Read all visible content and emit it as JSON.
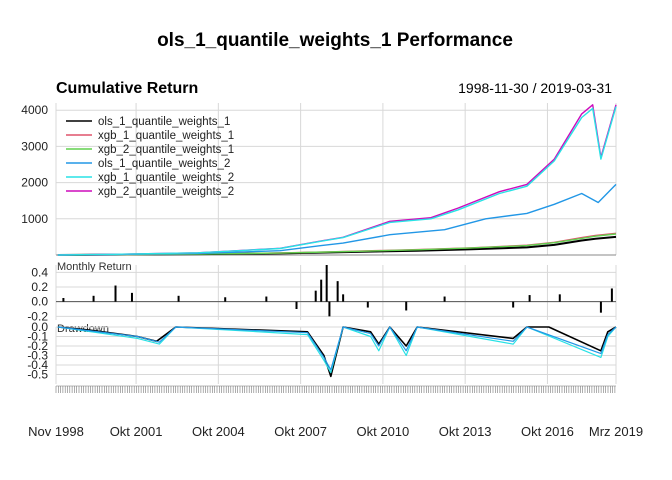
{
  "chart_data": {
    "type": "line",
    "title": "ols_1_quantile_weights_1 Performance",
    "panels": [
      {
        "name": "Cumulative Return",
        "date_range": "1998-11-30 / 2019-03-31",
        "ylim": [
          0,
          4200
        ],
        "yticks": [
          1000,
          2000,
          3000,
          4000
        ],
        "series": [
          {
            "name": "ols_1_quantile_weights_1",
            "color": "#000000",
            "x": [
              1998.9,
              2001,
              2004,
              2007,
              2008.7,
              2010,
              2012,
              2014,
              2016,
              2017,
              2018,
              2018.5,
              2019.25
            ],
            "values": [
              0,
              10,
              25,
              45,
              70,
              90,
              120,
              160,
              210,
              280,
              400,
              450,
              500
            ]
          },
          {
            "name": "xgb_1_quantile_weights_1",
            "color": "#DF536B",
            "x": [
              1998.9,
              2001,
              2004,
              2007,
              2008.7,
              2010,
              2012,
              2014,
              2016,
              2017,
              2018,
              2018.5,
              2019.25
            ],
            "values": [
              0,
              12,
              30,
              55,
              85,
              110,
              150,
              200,
              270,
              350,
              480,
              540,
              600
            ]
          },
          {
            "name": "xgb_2_quantile_weights_1",
            "color": "#61D04F",
            "x": [
              1998.9,
              2001,
              2004,
              2007,
              2008.7,
              2010,
              2012,
              2014,
              2016,
              2017,
              2018,
              2018.5,
              2019.25
            ],
            "values": [
              0,
              12,
              29,
              52,
              82,
              105,
              145,
              195,
              260,
              340,
              460,
              520,
              580
            ]
          },
          {
            "name": "ols_1_quantile_weights_2",
            "color": "#2297E6",
            "x": [
              1998.9,
              2001,
              2004,
              2007,
              2008.5,
              2009.3,
              2011,
              2013,
              2014.5,
              2016,
              2017,
              2018,
              2018.6,
              2019.25
            ],
            "values": [
              0,
              15,
              45,
              120,
              260,
              330,
              560,
              700,
              1000,
              1150,
              1400,
              1700,
              1450,
              1950
            ]
          },
          {
            "name": "xgb_1_quantile_weights_2",
            "color": "#28E2E5",
            "x": [
              1998.9,
              2001,
              2004,
              2007,
              2008.5,
              2009.3,
              2011,
              2012.5,
              2013.5,
              2015,
              2016,
              2017,
              2018,
              2018.4,
              2018.7,
              2019.25
            ],
            "values": [
              0,
              20,
              60,
              180,
              380,
              480,
              900,
              1000,
              1250,
              1700,
              1900,
              2600,
              3800,
              4050,
              2650,
              4100
            ]
          },
          {
            "name": "xgb_2_quantile_weights_2",
            "color": "#CD0BBC",
            "x": [
              1998.9,
              2001,
              2004,
              2007,
              2008.5,
              2009.3,
              2011,
              2012.5,
              2013.5,
              2015,
              2016,
              2017,
              2018,
              2018.4,
              2018.7,
              2019.25
            ],
            "values": [
              0,
              20,
              62,
              185,
              390,
              490,
              930,
              1030,
              1300,
              1750,
              1950,
              2650,
              3900,
              4150,
              2700,
              4150
            ]
          }
        ]
      },
      {
        "name": "Monthly Return",
        "ylim": [
          -0.25,
          0.5
        ],
        "yticks": [
          "0.4",
          "0.2",
          "0.0",
          "-0.2"
        ],
        "series": [
          {
            "name": "ols_1_quantile_weights_1",
            "type": "bar",
            "x": [
              1999.1,
              2000.2,
              2001.0,
              2001.6,
              2003.3,
              2005.0,
              2006.5,
              2007.6,
              2008.3,
              2008.5,
              2008.7,
              2008.8,
              2009.1,
              2009.3,
              2010.2,
              2011.6,
              2013.0,
              2015.5,
              2016.1,
              2017.2,
              2018.7,
              2019.1
            ],
            "values": [
              0.05,
              0.08,
              0.22,
              0.12,
              0.08,
              0.06,
              0.07,
              -0.1,
              0.15,
              0.3,
              0.5,
              -0.2,
              0.28,
              0.1,
              -0.08,
              -0.12,
              0.07,
              -0.08,
              0.09,
              0.1,
              -0.15,
              0.18
            ]
          }
        ]
      },
      {
        "name": "Drawdown",
        "ylim": [
          -0.6,
          0.0
        ],
        "yticks": [
          "0.0",
          "-0.1",
          "-0.2",
          "-0.3",
          "-0.4",
          "-0.5"
        ],
        "series": [
          {
            "name": "ols_1_quantile_weights_1",
            "color": "#000000",
            "x": [
              1998.9,
              2000.0,
              2001.8,
              2002.5,
              2003.2,
              2008.0,
              2008.6,
              2008.85,
              2009.3,
              2010.3,
              2010.6,
              2011.0,
              2011.6,
              2012.0,
              2015.5,
              2016.0,
              2016.8,
              2018.7,
              2018.95,
              2019.25
            ],
            "values": [
              0,
              -0.03,
              -0.1,
              -0.15,
              0,
              -0.05,
              -0.3,
              -0.52,
              0,
              -0.05,
              -0.18,
              0,
              -0.2,
              0,
              -0.12,
              0,
              0,
              -0.25,
              -0.05,
              0
            ]
          },
          {
            "name": "xgb_1_quantile_weights_2",
            "color": "#28E2E5",
            "x": [
              1998.9,
              2001.8,
              2002.6,
              2003.2,
              2008.0,
              2008.6,
              2008.85,
              2009.3,
              2010.3,
              2010.6,
              2011.0,
              2011.6,
              2012.0,
              2015.5,
              2016.0,
              2018.7,
              2018.95,
              2019.25
            ],
            "values": [
              0,
              -0.12,
              -0.18,
              0,
              -0.08,
              -0.35,
              -0.48,
              0,
              -0.1,
              -0.25,
              0,
              -0.3,
              0,
              -0.18,
              0,
              -0.32,
              -0.1,
              0
            ]
          },
          {
            "name": "ols_1_quantile_weights_2",
            "color": "#2297E6",
            "x": [
              1998.9,
              2001.8,
              2002.6,
              2003.2,
              2008.0,
              2008.6,
              2008.85,
              2009.3,
              2010.3,
              2010.6,
              2011.0,
              2011.6,
              2012.0,
              2015.5,
              2016.0,
              2018.7,
              2018.95,
              2019.25
            ],
            "values": [
              0,
              -0.1,
              -0.16,
              0,
              -0.06,
              -0.32,
              -0.45,
              0,
              -0.07,
              -0.2,
              0,
              -0.25,
              0,
              -0.15,
              0,
              -0.28,
              -0.08,
              0
            ]
          }
        ]
      }
    ],
    "xaxis": {
      "range": [
        1998.83,
        2019.25
      ],
      "ticks": [
        {
          "label": "Nov 1998",
          "x": 1998.83
        },
        {
          "label": "Okt 2001",
          "x": 2001.75
        },
        {
          "label": "Okt 2004",
          "x": 2004.75
        },
        {
          "label": "Okt 2007",
          "x": 2007.75
        },
        {
          "label": "Okt 2010",
          "x": 2010.75
        },
        {
          "label": "Okt 2013",
          "x": 2013.75
        },
        {
          "label": "Okt 2016",
          "x": 2016.75
        },
        {
          "label": "Mrz 2019",
          "x": 2019.25
        }
      ]
    },
    "legend_position": "top-left",
    "grid": true
  }
}
